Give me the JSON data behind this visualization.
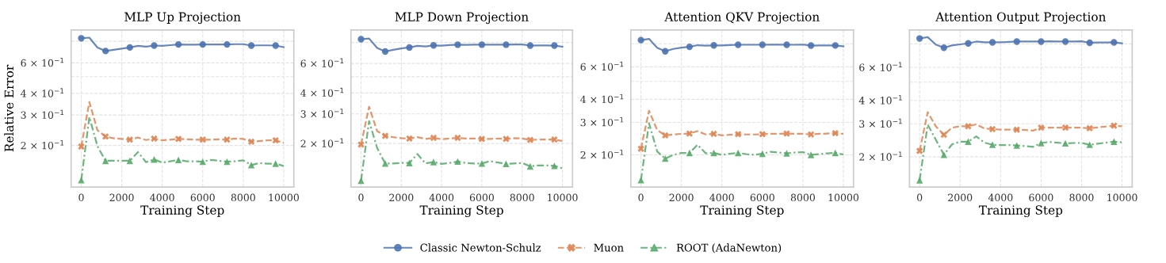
{
  "chart_data": [
    {
      "type": "line",
      "title": "MLP Up Projection",
      "xlabel": "Training Step",
      "ylabel": "Relative Error",
      "log": "y",
      "grid": true,
      "legend": "bottom",
      "x": [
        0,
        400,
        800,
        1200,
        1600,
        2000,
        2400,
        2800,
        3200,
        3600,
        4000,
        4400,
        4800,
        5200,
        5600,
        6000,
        6400,
        6800,
        7200,
        7600,
        8000,
        8400,
        8800,
        9200,
        9600,
        10000
      ],
      "xlim": [
        -500,
        10500
      ],
      "xticks": [
        0,
        2000,
        4000,
        6000,
        8000,
        10000
      ],
      "ylim": [
        0.115,
        0.93
      ],
      "yticks": [
        {
          "value": 0.2,
          "label": "2 × 10$^{−1}$"
        },
        {
          "value": 0.3,
          "label": "3 × 10$^{−1}$"
        },
        {
          "value": 0.4,
          "label": "4 × 10$^{−1}$"
        },
        {
          "value": 0.5,
          "label": null
        },
        {
          "value": 0.6,
          "label": "6 × 10$^{−1}$"
        },
        {
          "value": 0.8,
          "label": null
        }
      ],
      "series": [
        {
          "name": "Classic Newton-Schulz",
          "color": "#4c72b0",
          "line_style": "solid",
          "values": [
            0.833,
            0.84,
            0.736,
            0.703,
            0.714,
            0.726,
            0.737,
            0.753,
            0.745,
            0.756,
            0.753,
            0.76,
            0.767,
            0.765,
            0.765,
            0.767,
            0.767,
            0.767,
            0.767,
            0.77,
            0.77,
            0.756,
            0.758,
            0.758,
            0.756,
            0.74
          ]
        },
        {
          "name": "Muon",
          "color": "#dd8452",
          "line_style": "dashed",
          "values": [
            0.197,
            0.356,
            0.245,
            0.225,
            0.22,
            0.218,
            0.216,
            0.222,
            0.215,
            0.219,
            0.214,
            0.216,
            0.218,
            0.217,
            0.216,
            0.216,
            0.216,
            0.217,
            0.216,
            0.219,
            0.218,
            0.21,
            0.212,
            0.214,
            0.214,
            0.207
          ]
        },
        {
          "name": "ROOT (AdaNewton)",
          "color": "#55a868",
          "line_style": "dashdot",
          "values": [
            0.126,
            0.292,
            0.198,
            0.163,
            0.163,
            0.163,
            0.163,
            0.183,
            0.16,
            0.166,
            0.159,
            0.162,
            0.165,
            0.162,
            0.162,
            0.161,
            0.165,
            0.163,
            0.161,
            0.162,
            0.164,
            0.154,
            0.158,
            0.157,
            0.157,
            0.152
          ]
        },
        {
          "type": "scatter",
          "color": "#4c72b0",
          "marker": "circle",
          "x": [
            0,
            1200,
            2400,
            3600,
            4800,
            6000,
            7200,
            8400,
            9600
          ],
          "values": [
            0.833,
            0.703,
            0.737,
            0.756,
            0.767,
            0.767,
            0.767,
            0.756,
            0.756
          ]
        },
        {
          "type": "scatter",
          "color": "#dd8452",
          "marker": "cross",
          "x": [
            0,
            1200,
            2400,
            3600,
            4800,
            6000,
            7200,
            8400,
            9600
          ],
          "values": [
            0.197,
            0.225,
            0.216,
            0.219,
            0.218,
            0.216,
            0.216,
            0.21,
            0.214
          ]
        },
        {
          "type": "scatter",
          "color": "#55a868",
          "marker": "triangle",
          "x": [
            0,
            1200,
            2400,
            3600,
            4800,
            6000,
            7200,
            8400,
            9600
          ],
          "values": [
            0.126,
            0.163,
            0.163,
            0.166,
            0.165,
            0.161,
            0.161,
            0.154,
            0.157
          ]
        }
      ]
    },
    {
      "type": "line",
      "title": "MLP Down Projection",
      "xlabel": "Training Step",
      "log": "y",
      "grid": true,
      "x": [
        0,
        400,
        800,
        1200,
        1600,
        2000,
        2400,
        2800,
        3200,
        3600,
        4000,
        4400,
        4800,
        5200,
        5600,
        6000,
        6400,
        6800,
        7200,
        7600,
        8000,
        8400,
        8800,
        9200,
        9600,
        10000
      ],
      "xlim": [
        -500,
        10500
      ],
      "xticks": [
        0,
        2000,
        4000,
        6000,
        8000,
        10000
      ],
      "ylim": [
        0.11,
        0.95
      ],
      "yticks": [
        {
          "value": 0.2,
          "label": "2 × 10$^{−1}$"
        },
        {
          "value": 0.3,
          "label": "3 × 10$^{−1}$"
        },
        {
          "value": 0.4,
          "label": "4 × 10$^{−1}$"
        },
        {
          "value": 0.5,
          "label": null
        },
        {
          "value": 0.6,
          "label": "6 × 10$^{−1}$"
        },
        {
          "value": 0.8,
          "label": null
        }
      ],
      "series": [
        {
          "name": "Classic Newton-Schulz",
          "color": "#4c72b0",
          "line_style": "solid",
          "values": [
            0.837,
            0.845,
            0.742,
            0.707,
            0.723,
            0.737,
            0.747,
            0.764,
            0.758,
            0.769,
            0.767,
            0.772,
            0.776,
            0.775,
            0.776,
            0.776,
            0.776,
            0.776,
            0.776,
            0.778,
            0.778,
            0.767,
            0.768,
            0.768,
            0.767,
            0.755
          ]
        },
        {
          "name": "Muon",
          "color": "#dd8452",
          "line_style": "dashed",
          "values": [
            0.197,
            0.331,
            0.237,
            0.222,
            0.218,
            0.215,
            0.214,
            0.218,
            0.213,
            0.216,
            0.212,
            0.214,
            0.216,
            0.214,
            0.214,
            0.213,
            0.213,
            0.214,
            0.213,
            0.215,
            0.214,
            0.21,
            0.211,
            0.211,
            0.211,
            0.207
          ]
        },
        {
          "name": "ROOT (AdaNewton)",
          "color": "#55a868",
          "line_style": "dashdot",
          "values": [
            0.12,
            0.272,
            0.188,
            0.152,
            0.152,
            0.153,
            0.153,
            0.173,
            0.152,
            0.155,
            0.151,
            0.153,
            0.156,
            0.153,
            0.152,
            0.152,
            0.157,
            0.154,
            0.151,
            0.152,
            0.153,
            0.146,
            0.148,
            0.148,
            0.147,
            0.142
          ]
        },
        {
          "type": "scatter",
          "color": "#4c72b0",
          "marker": "circle",
          "x": [
            0,
            1200,
            2400,
            3600,
            4800,
            6000,
            7200,
            8400,
            9600
          ],
          "values": [
            0.837,
            0.707,
            0.747,
            0.769,
            0.776,
            0.776,
            0.776,
            0.767,
            0.767
          ]
        },
        {
          "type": "scatter",
          "color": "#dd8452",
          "marker": "cross",
          "x": [
            0,
            1200,
            2400,
            3600,
            4800,
            6000,
            7200,
            8400,
            9600
          ],
          "values": [
            0.197,
            0.222,
            0.214,
            0.216,
            0.216,
            0.213,
            0.213,
            0.21,
            0.211
          ]
        },
        {
          "type": "scatter",
          "color": "#55a868",
          "marker": "triangle",
          "x": [
            0,
            1200,
            2400,
            3600,
            4800,
            6000,
            7200,
            8400,
            9600
          ],
          "values": [
            0.12,
            0.152,
            0.153,
            0.155,
            0.156,
            0.152,
            0.151,
            0.146,
            0.147
          ]
        }
      ]
    },
    {
      "type": "line",
      "title": "Attention QKV Projection",
      "xlabel": "Training Step",
      "log": "y",
      "grid": true,
      "x": [
        0,
        400,
        800,
        1200,
        1600,
        2000,
        2400,
        2800,
        3200,
        3600,
        4000,
        4400,
        4800,
        5200,
        5600,
        6000,
        6400,
        6800,
        7200,
        7600,
        8000,
        8400,
        8800,
        9200,
        9600,
        10000
      ],
      "xlim": [
        -500,
        10500
      ],
      "xticks": [
        0,
        2000,
        4000,
        6000,
        8000,
        10000
      ],
      "ylim": [
        0.134,
        0.95
      ],
      "yticks": [
        {
          "value": 0.2,
          "label": "2 × 10$^{−1}$"
        },
        {
          "value": 0.3,
          "label": "3 × 10$^{−1}$"
        },
        {
          "value": 0.4,
          "label": "4 × 10$^{−1}$"
        },
        {
          "value": 0.5,
          "label": null
        },
        {
          "value": 0.6,
          "label": "6 × 10$^{−1}$"
        },
        {
          "value": 0.8,
          "label": null
        }
      ],
      "series": [
        {
          "name": "Classic Newton-Schulz",
          "color": "#4c72b0",
          "line_style": "solid",
          "values": [
            0.837,
            0.85,
            0.762,
            0.728,
            0.75,
            0.762,
            0.77,
            0.786,
            0.781,
            0.784,
            0.783,
            0.787,
            0.79,
            0.79,
            0.79,
            0.79,
            0.792,
            0.791,
            0.79,
            0.79,
            0.792,
            0.782,
            0.783,
            0.783,
            0.783,
            0.775
          ]
        },
        {
          "name": "Muon",
          "color": "#dd8452",
          "line_style": "dashed",
          "values": [
            0.216,
            0.347,
            0.273,
            0.255,
            0.258,
            0.26,
            0.261,
            0.269,
            0.258,
            0.26,
            0.255,
            0.257,
            0.259,
            0.258,
            0.258,
            0.259,
            0.26,
            0.26,
            0.261,
            0.26,
            0.26,
            0.258,
            0.26,
            0.261,
            0.262,
            0.26
          ]
        },
        {
          "name": "ROOT (AdaNewton)",
          "color": "#55a868",
          "line_style": "dashdot",
          "values": [
            0.146,
            0.297,
            0.209,
            0.191,
            0.2,
            0.205,
            0.205,
            0.227,
            0.204,
            0.205,
            0.2,
            0.203,
            0.205,
            0.202,
            0.2,
            0.203,
            0.208,
            0.206,
            0.204,
            0.206,
            0.207,
            0.2,
            0.202,
            0.204,
            0.205,
            0.201
          ]
        },
        {
          "type": "scatter",
          "color": "#4c72b0",
          "marker": "circle",
          "x": [
            0,
            1200,
            2400,
            3600,
            4800,
            6000,
            7200,
            8400,
            9600
          ],
          "values": [
            0.837,
            0.728,
            0.77,
            0.784,
            0.79,
            0.79,
            0.79,
            0.782,
            0.783
          ]
        },
        {
          "type": "scatter",
          "color": "#dd8452",
          "marker": "cross",
          "x": [
            0,
            1200,
            2400,
            3600,
            4800,
            6000,
            7200,
            8400,
            9600
          ],
          "values": [
            0.216,
            0.255,
            0.261,
            0.26,
            0.259,
            0.259,
            0.261,
            0.258,
            0.262
          ]
        },
        {
          "type": "scatter",
          "color": "#55a868",
          "marker": "triangle",
          "x": [
            0,
            1200,
            2400,
            3600,
            4800,
            6000,
            7200,
            8400,
            9600
          ],
          "values": [
            0.146,
            0.191,
            0.205,
            0.205,
            0.205,
            0.203,
            0.204,
            0.2,
            0.205
          ]
        }
      ]
    },
    {
      "type": "line",
      "title": "Attention Output Projection",
      "xlabel": "Training Step",
      "log": "y",
      "grid": true,
      "x": [
        0,
        400,
        800,
        1200,
        1600,
        2000,
        2400,
        2800,
        3200,
        3600,
        4000,
        4400,
        4800,
        5200,
        5600,
        6000,
        6400,
        6800,
        7200,
        7600,
        8000,
        8400,
        8800,
        9200,
        9600,
        10000
      ],
      "xlim": [
        -500,
        10500
      ],
      "xticks": [
        0,
        2000,
        4000,
        6000,
        8000,
        10000
      ],
      "ylim": [
        0.138,
        0.95
      ],
      "yticks": [
        {
          "value": 0.2,
          "label": "2 × 10$^{−1}$"
        },
        {
          "value": 0.3,
          "label": "3 × 10$^{−1}$"
        },
        {
          "value": 0.4,
          "label": "4 × 10$^{−1}$"
        },
        {
          "value": 0.5,
          "label": null
        },
        {
          "value": 0.6,
          "label": "6 × 10$^{−1}$"
        },
        {
          "value": 0.8,
          "label": null
        }
      ],
      "series": [
        {
          "name": "Classic Newton-Schulz",
          "color": "#4c72b0",
          "line_style": "solid",
          "values": [
            0.856,
            0.87,
            0.794,
            0.764,
            0.786,
            0.796,
            0.806,
            0.824,
            0.816,
            0.816,
            0.816,
            0.82,
            0.824,
            0.824,
            0.824,
            0.824,
            0.826,
            0.825,
            0.824,
            0.824,
            0.826,
            0.812,
            0.814,
            0.815,
            0.816,
            0.806
          ]
        },
        {
          "name": "Muon",
          "color": "#dd8452",
          "line_style": "dashed",
          "values": [
            0.215,
            0.346,
            0.291,
            0.262,
            0.286,
            0.291,
            0.291,
            0.298,
            0.283,
            0.281,
            0.279,
            0.279,
            0.279,
            0.278,
            0.276,
            0.286,
            0.286,
            0.286,
            0.286,
            0.286,
            0.286,
            0.284,
            0.287,
            0.29,
            0.293,
            0.291
          ]
        },
        {
          "name": "ROOT (AdaNewton)",
          "color": "#55a868",
          "line_style": "dashdot",
          "values": [
            0.15,
            0.297,
            0.247,
            0.205,
            0.233,
            0.241,
            0.241,
            0.257,
            0.238,
            0.232,
            0.231,
            0.231,
            0.23,
            0.228,
            0.226,
            0.237,
            0.24,
            0.238,
            0.236,
            0.237,
            0.237,
            0.232,
            0.235,
            0.238,
            0.241,
            0.239
          ]
        },
        {
          "type": "scatter",
          "color": "#4c72b0",
          "marker": "circle",
          "x": [
            0,
            1200,
            2400,
            3600,
            4800,
            6000,
            7200,
            8400,
            9600
          ],
          "values": [
            0.856,
            0.764,
            0.806,
            0.816,
            0.824,
            0.824,
            0.824,
            0.812,
            0.816
          ]
        },
        {
          "type": "scatter",
          "color": "#dd8452",
          "marker": "cross",
          "x": [
            0,
            1200,
            2400,
            3600,
            4800,
            6000,
            7200,
            8400,
            9600
          ],
          "values": [
            0.215,
            0.262,
            0.291,
            0.281,
            0.279,
            0.286,
            0.286,
            0.284,
            0.293
          ]
        },
        {
          "type": "scatter",
          "color": "#55a868",
          "marker": "triangle",
          "x": [
            0,
            1200,
            2400,
            3600,
            4800,
            6000,
            7200,
            8400,
            9600
          ],
          "values": [
            0.15,
            0.205,
            0.241,
            0.232,
            0.23,
            0.237,
            0.236,
            0.232,
            0.241
          ]
        }
      ]
    }
  ]
}
